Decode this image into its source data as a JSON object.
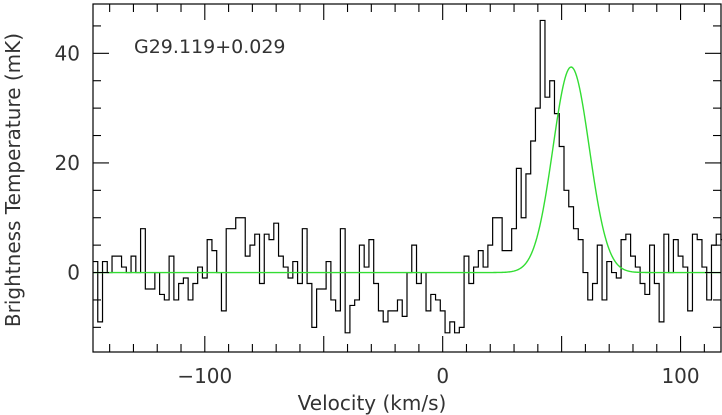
{
  "chart_data": {
    "type": "line",
    "annotation": "G29.119+0.029",
    "xlabel": "Velocity (km/s)",
    "ylabel": "Brightness Temperature (mK)",
    "xlim": [
      -147,
      117
    ],
    "ylim": [
      -14.5,
      49
    ],
    "x_ticks": [
      -100,
      0,
      100
    ],
    "x_tick_labels": [
      "−100",
      "0",
      "100"
    ],
    "y_ticks": [
      0,
      20,
      40
    ],
    "y_tick_labels": [
      "0",
      "20",
      "40"
    ],
    "grid": false,
    "series": [
      {
        "kind": "histogram-step",
        "color": "#000000",
        "bin_width": 2.0,
        "x_start": -147,
        "values": [
          2,
          -9,
          2,
          0,
          3,
          3,
          1,
          0,
          3,
          0,
          8,
          -3,
          -3,
          0,
          -4,
          -5,
          3,
          -5,
          -2,
          -1,
          -5,
          -2,
          1,
          -1,
          6,
          4,
          0,
          -7,
          8,
          8,
          10,
          10,
          3,
          5,
          7,
          -2,
          7,
          6,
          9,
          3,
          1,
          -1,
          2,
          -2,
          8,
          -2,
          -10,
          -3,
          -3,
          2,
          -5,
          -7,
          8,
          -11,
          -6,
          -5,
          5,
          1,
          6,
          -2,
          -7,
          -9,
          -7,
          -7,
          -5,
          -8,
          0,
          5,
          -2,
          0,
          -7,
          -4,
          -5,
          -7,
          -11,
          -9,
          -11,
          -10,
          3,
          -2,
          1,
          4,
          1,
          5,
          10,
          10,
          4,
          4,
          8,
          19,
          10,
          18,
          24,
          30,
          46,
          32,
          35,
          29,
          23,
          15,
          12,
          8,
          6,
          0,
          -5,
          -2,
          5,
          -5,
          2,
          0,
          -1,
          6,
          7,
          3,
          1,
          -2,
          -4,
          5,
          -2,
          -9,
          7,
          0,
          6,
          3,
          1,
          -7,
          7,
          6,
          1,
          -5,
          5,
          7,
          6,
          0
        ]
      },
      {
        "kind": "gaussian-fit",
        "color": "#33dd33",
        "amplitude": 37.5,
        "center": 54,
        "fwhm": 18,
        "baseline": 0
      }
    ]
  }
}
